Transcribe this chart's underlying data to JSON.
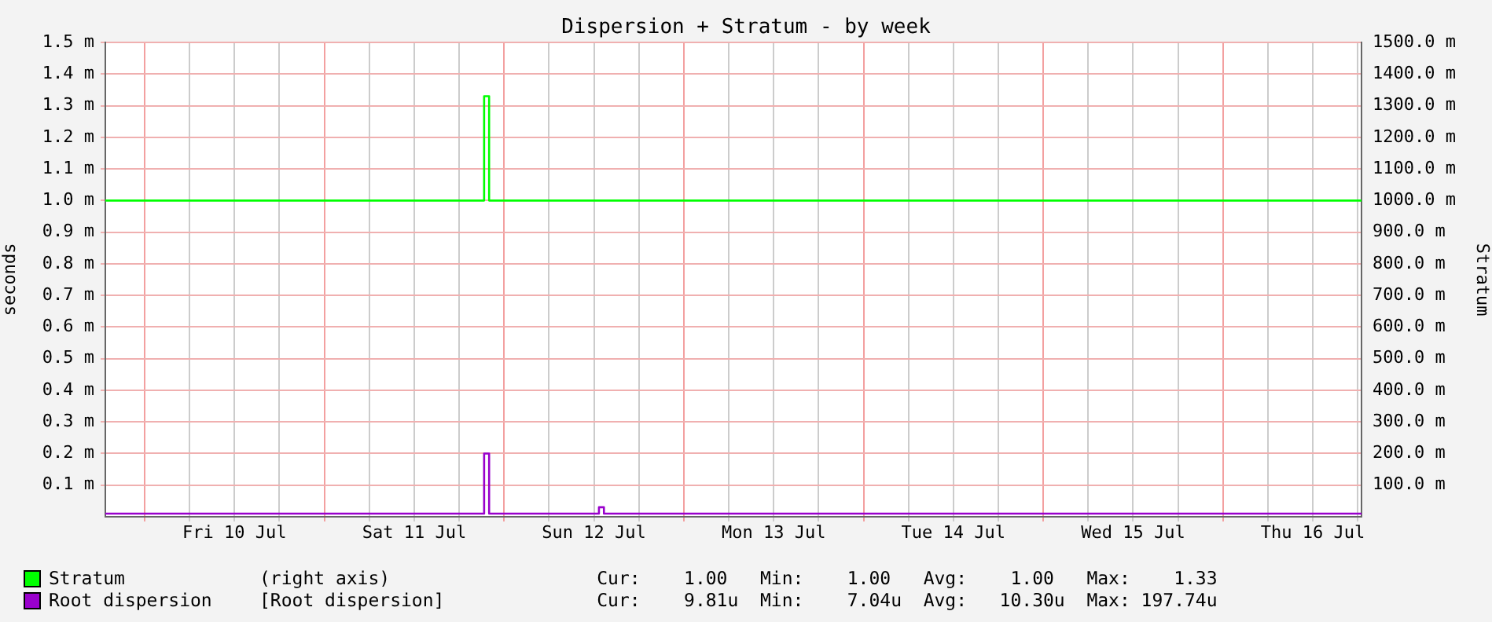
{
  "chart_data": {
    "type": "step",
    "title": "Dispersion + Stratum - by week",
    "ylabel": "seconds",
    "y2label": "Stratum",
    "xlim": [
      "--07-09T18:45",
      "--07-16T18:30"
    ],
    "xticks": [
      {
        "value": "--07-10T00:00",
        "label": null
      },
      {
        "value": "--07-10T06:00",
        "label": null
      },
      {
        "value": "--07-10T12:00",
        "label": "Fri 10 Jul"
      },
      {
        "value": "--07-10T18:00",
        "label": null
      },
      {
        "value": "--07-11T00:00",
        "label": null
      },
      {
        "value": "--07-11T06:00",
        "label": null
      },
      {
        "value": "--07-11T12:00",
        "label": "Sat 11 Jul"
      },
      {
        "value": "--07-11T18:00",
        "label": null
      },
      {
        "value": "--07-12T00:00",
        "label": null
      },
      {
        "value": "--07-12T06:00",
        "label": null
      },
      {
        "value": "--07-12T12:00",
        "label": "Sun 12 Jul"
      },
      {
        "value": "--07-12T18:00",
        "label": null
      },
      {
        "value": "--07-13T00:00",
        "label": null
      },
      {
        "value": "--07-13T06:00",
        "label": null
      },
      {
        "value": "--07-13T12:00",
        "label": "Mon 13 Jul"
      },
      {
        "value": "--07-13T18:00",
        "label": null
      },
      {
        "value": "--07-14T00:00",
        "label": null
      },
      {
        "value": "--07-14T06:00",
        "label": null
      },
      {
        "value": "--07-14T12:00",
        "label": "Tue 14 Jul"
      },
      {
        "value": "--07-14T18:00",
        "label": null
      },
      {
        "value": "--07-15T00:00",
        "label": null
      },
      {
        "value": "--07-15T06:00",
        "label": null
      },
      {
        "value": "--07-15T12:00",
        "label": "Wed 15 Jul"
      },
      {
        "value": "--07-15T18:00",
        "label": null
      },
      {
        "value": "--07-16T00:00",
        "label": null
      },
      {
        "value": "--07-16T06:00",
        "label": null
      },
      {
        "value": "--07-16T12:00",
        "label": "Thu 16 Jul"
      },
      {
        "value": "--07-16T18:00",
        "label": null
      }
    ],
    "ylim": [
      0,
      1.5
    ],
    "yticks": [
      {
        "value": 0.1,
        "label": "0.1 m"
      },
      {
        "value": 0.2,
        "label": "0.2 m"
      },
      {
        "value": 0.3,
        "label": "0.3 m"
      },
      {
        "value": 0.4,
        "label": "0.4 m"
      },
      {
        "value": 0.5,
        "label": "0.5 m"
      },
      {
        "value": 0.6,
        "label": "0.6 m"
      },
      {
        "value": 0.7,
        "label": "0.7 m"
      },
      {
        "value": 0.8,
        "label": "0.8 m"
      },
      {
        "value": 0.9,
        "label": "0.9 m"
      },
      {
        "value": 1.0,
        "label": "1.0 m"
      },
      {
        "value": 1.1,
        "label": "1.1 m"
      },
      {
        "value": 1.2,
        "label": "1.2 m"
      },
      {
        "value": 1.3,
        "label": "1.3 m"
      },
      {
        "value": 1.4,
        "label": "1.4 m"
      },
      {
        "value": 1.5,
        "label": "1.5 m"
      }
    ],
    "y2lim": [
      0,
      1500
    ],
    "y2ticks": [
      {
        "value": 100,
        "label": "100.0 m"
      },
      {
        "value": 200,
        "label": "200.0 m"
      },
      {
        "value": 300,
        "label": "300.0 m"
      },
      {
        "value": 400,
        "label": "400.0 m"
      },
      {
        "value": 500,
        "label": "500.0 m"
      },
      {
        "value": 600,
        "label": "600.0 m"
      },
      {
        "value": 700,
        "label": "700.0 m"
      },
      {
        "value": 800,
        "label": "800.0 m"
      },
      {
        "value": 900,
        "label": "900.0 m"
      },
      {
        "value": 1000,
        "label": "1000.0 m"
      },
      {
        "value": 1100,
        "label": "1100.0 m"
      },
      {
        "value": 1200,
        "label": "1200.0 m"
      },
      {
        "value": 1300,
        "label": "1300.0 m"
      },
      {
        "value": 1400,
        "label": "1400.0 m"
      },
      {
        "value": 1500,
        "label": "1500.0 m"
      }
    ],
    "series": [
      {
        "name": "Stratum",
        "color": "#00ff00",
        "axis": "y2",
        "x": [
          "--07-09T18:45",
          "--07-11T21:20",
          "--07-11T22:00",
          "--07-16T18:30"
        ],
        "values": [
          1000,
          1330,
          1000,
          1000
        ]
      },
      {
        "name": "Root dispersion",
        "color": "#9900cc",
        "x": [
          "--07-09T18:45",
          "--07-11T21:20",
          "--07-11T22:00",
          "--07-12T12:40",
          "--07-12T13:20",
          "--07-16T18:30"
        ],
        "values": [
          0.01,
          0.2,
          0.01,
          0.03,
          0.01,
          0.01
        ]
      }
    ],
    "annotations": [
      "(right axis)                   Cur:    1.00   Min:    1.00   Avg:    1.00   Max:    1.33",
      "[Root dispersion]              Cur:    9.81u  Min:    7.04u  Avg:   10.30u  Max: 197.74u"
    ],
    "grid": true,
    "legend": "bottom"
  }
}
